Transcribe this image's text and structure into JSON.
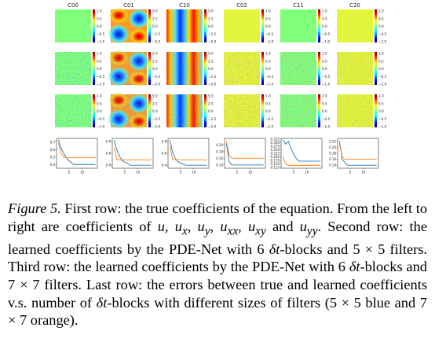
{
  "figure": {
    "column_titles": [
      "C00",
      "C01",
      "C10",
      "C02",
      "C11",
      "C20"
    ],
    "colorbar_ticks": [
      [
        "1.0",
        "0.5",
        "0.0",
        "−0.5",
        "−1.0"
      ],
      [
        "5.0",
        "2.5",
        "0.0",
        "−2.5",
        "−5.0"
      ],
      [
        "5.0",
        "2.5",
        "0.0",
        "−2.5",
        "−5.0"
      ],
      [
        "1.0",
        "0.5",
        "0.0",
        "−0.5",
        "−1.0"
      ],
      [
        "1.0",
        "0.5",
        "0.0",
        "−0.5",
        "−1.0"
      ],
      [
        "1.0",
        "0.5",
        "0.0",
        "−0.5",
        "−1.0"
      ]
    ],
    "colors": {
      "green": "#7fff7a",
      "yellow": "#e2f53a",
      "blue_series": "#1f77b4",
      "orange_series": "#ff7f0e"
    }
  },
  "chart_data": [
    {
      "type": "line",
      "x": [
        1,
        2,
        3,
        4,
        5,
        6,
        7,
        8,
        9,
        10,
        11,
        12,
        13,
        14,
        15
      ],
      "ylim": [
        0.35,
        0.75
      ],
      "yticks": [
        "0.7",
        "0.6",
        "0.5",
        "0.4"
      ],
      "xticks": [
        "5",
        "10"
      ],
      "series": [
        {
          "values": [
            0.73,
            0.62,
            0.55,
            0.49,
            0.45,
            0.42,
            0.4,
            0.4,
            0.4,
            0.4,
            0.4,
            0.4,
            0.4,
            0.4,
            0.4
          ]
        },
        {
          "values": [
            0.69,
            0.55,
            0.5,
            0.49,
            0.49,
            0.49,
            0.49,
            0.49,
            0.49,
            0.49,
            0.49,
            0.49,
            0.49,
            0.49,
            0.49
          ]
        }
      ]
    },
    {
      "type": "line",
      "x": [
        1,
        2,
        3,
        4,
        5,
        6,
        7,
        8,
        9,
        10,
        11,
        12,
        13,
        14,
        15
      ],
      "ylim": [
        0.35,
        0.85
      ],
      "yticks": [
        "0.8",
        "0.6",
        "0.4"
      ],
      "xticks": [
        "5",
        "10"
      ],
      "series": [
        {
          "values": [
            0.82,
            0.66,
            0.55,
            0.48,
            0.45,
            0.43,
            0.4,
            0.4,
            0.4,
            0.4,
            0.4,
            0.4,
            0.4,
            0.4,
            0.4
          ]
        },
        {
          "values": [
            0.7,
            0.5,
            0.49,
            0.49,
            0.49,
            0.49,
            0.49,
            0.49,
            0.49,
            0.49,
            0.49,
            0.49,
            0.49,
            0.49,
            0.49
          ]
        }
      ]
    },
    {
      "type": "line",
      "x": [
        1,
        2,
        3,
        4,
        5,
        6,
        7,
        8,
        9,
        10,
        11,
        12,
        13,
        14,
        15
      ],
      "ylim": [
        0.35,
        0.85
      ],
      "yticks": [
        "0.8",
        "0.6",
        "0.4"
      ],
      "xticks": [
        "5",
        "10"
      ],
      "series": [
        {
          "values": [
            0.82,
            0.62,
            0.52,
            0.46,
            0.44,
            0.42,
            0.4,
            0.4,
            0.4,
            0.4,
            0.4,
            0.4,
            0.4,
            0.4,
            0.4
          ]
        },
        {
          "values": [
            0.72,
            0.5,
            0.49,
            0.49,
            0.49,
            0.49,
            0.49,
            0.49,
            0.49,
            0.49,
            0.49,
            0.49,
            0.49,
            0.49,
            0.49
          ]
        }
      ]
    },
    {
      "type": "line",
      "x": [
        1,
        2,
        3,
        4,
        5,
        6,
        7,
        8,
        9,
        10,
        11,
        12,
        13,
        14,
        15
      ],
      "ylim": [
        0.13,
        0.22
      ],
      "yticks": [
        "0.20",
        "0.18",
        "0.16",
        "0.14"
      ],
      "xticks": [
        "5",
        "10"
      ],
      "series": [
        {
          "values": [
            0.205,
            0.15,
            0.14,
            0.14,
            0.14,
            0.14,
            0.14,
            0.14,
            0.14,
            0.14,
            0.14,
            0.14,
            0.14,
            0.14,
            0.14
          ]
        },
        {
          "values": [
            0.21,
            0.17,
            0.16,
            0.16,
            0.16,
            0.16,
            0.16,
            0.16,
            0.16,
            0.16,
            0.16,
            0.16,
            0.16,
            0.16,
            0.16
          ]
        }
      ]
    },
    {
      "type": "line",
      "x": [
        1,
        2,
        3,
        4,
        5,
        6,
        7,
        8,
        9,
        10,
        11,
        12,
        13,
        14,
        15
      ],
      "ylim": [
        0.12,
        0.33
      ],
      "yticks": [
        "0.325",
        "0.300",
        "0.275",
        "0.250",
        "0.225",
        "0.200",
        "0.175",
        "0.150",
        "0.125"
      ],
      "xticks": [
        "5",
        "10"
      ],
      "series": [
        {
          "values": [
            0.32,
            0.29,
            0.31,
            0.26,
            0.22,
            0.19,
            0.17,
            0.17,
            0.17,
            0.17,
            0.17,
            0.17,
            0.17,
            0.17,
            0.17
          ]
        },
        {
          "values": [
            0.2,
            0.15,
            0.14,
            0.14,
            0.14,
            0.14,
            0.14,
            0.14,
            0.14,
            0.14,
            0.14,
            0.14,
            0.14,
            0.14,
            0.14
          ]
        }
      ]
    },
    {
      "type": "line",
      "x": [
        1,
        2,
        3,
        4,
        5,
        6,
        7,
        8,
        9,
        10,
        11,
        12,
        13,
        14,
        15
      ],
      "ylim": [
        0.13,
        0.23
      ],
      "yticks": [
        "0.22",
        "0.20",
        "0.18",
        "0.16",
        "0.14"
      ],
      "xticks": [
        "5",
        "10"
      ],
      "series": [
        {
          "values": [
            0.22,
            0.16,
            0.15,
            0.14,
            0.14,
            0.14,
            0.14,
            0.14,
            0.14,
            0.14,
            0.14,
            0.14,
            0.14,
            0.14,
            0.14
          ]
        },
        {
          "values": [
            0.21,
            0.17,
            0.16,
            0.16,
            0.16,
            0.16,
            0.16,
            0.16,
            0.16,
            0.16,
            0.16,
            0.16,
            0.16,
            0.16,
            0.16
          ]
        }
      ]
    }
  ],
  "caption": {
    "label": "Figure 5.",
    "t1": " First row: the true coefficients of the equation. From the left to right are coefficients of ",
    "u": "u",
    "sep1": ", ",
    "ux_base": "u",
    "ux_sub": "x",
    "sep2": ", ",
    "uy_base": "u",
    "uy_sub": "y",
    "sep3": ", ",
    "uxx_base": "u",
    "uxx_sub": "xx",
    "sep4": ", ",
    "uxy_base": "u",
    "uxy_sub": "xy",
    "and": " and ",
    "uyy_base": "u",
    "uyy_sub": "yy",
    "t2": ". Second row: the learned coefficients by the PDE-Net with 6 ",
    "dt1": "δt",
    "t3": "-blocks and 5 × 5 filters. Third row: the learned coefficients by the PDE-Net with 6 ",
    "dt2": "δt",
    "t4": "-blocks and 7 × 7 filters. Last row: the errors between true and learned coefficients v.s. number of ",
    "dt3": "δt",
    "t5": "-blocks with different sizes of filters (5 × 5 blue and 7 × 7 orange)."
  }
}
